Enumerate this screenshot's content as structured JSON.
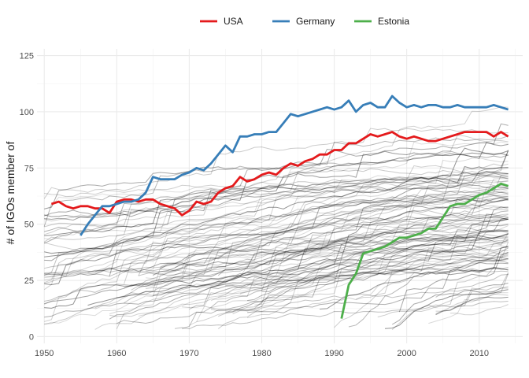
{
  "chart_data": {
    "type": "line",
    "title": "",
    "xlabel": "",
    "ylabel": "# of IGOs member of",
    "xlim": [
      1949,
      2016
    ],
    "ylim": [
      -3,
      128
    ],
    "x_ticks": [
      1950,
      1960,
      1970,
      1980,
      1990,
      2000,
      2010
    ],
    "x_tick_labels": [
      "1950",
      "1960",
      "1970",
      "1980",
      "1990",
      "2000",
      "2010"
    ],
    "y_ticks": [
      0,
      25,
      50,
      75,
      100,
      125
    ],
    "y_tick_labels": [
      "0",
      "25",
      "50",
      "75",
      "100",
      "125"
    ],
    "grid": true,
    "legend_position": "top",
    "legend": [
      "USA",
      "Germany",
      "Estonia"
    ],
    "background_series_color": "#000000",
    "series": [
      {
        "name": "USA",
        "color": "#e41a1c",
        "x": [
          1951,
          1952,
          1953,
          1954,
          1955,
          1956,
          1957,
          1958,
          1959,
          1960,
          1961,
          1962,
          1963,
          1964,
          1965,
          1966,
          1967,
          1968,
          1969,
          1970,
          1971,
          1972,
          1973,
          1974,
          1975,
          1976,
          1977,
          1978,
          1979,
          1980,
          1981,
          1982,
          1983,
          1984,
          1985,
          1986,
          1987,
          1988,
          1989,
          1990,
          1991,
          1992,
          1993,
          1994,
          1995,
          1996,
          1997,
          1998,
          1999,
          2000,
          2001,
          2002,
          2003,
          2004,
          2005,
          2006,
          2007,
          2008,
          2009,
          2010,
          2011,
          2012,
          2013,
          2014
        ],
        "y": [
          59,
          60,
          58,
          57,
          58,
          58,
          57,
          57,
          55,
          60,
          61,
          61,
          60,
          61,
          61,
          59,
          58,
          57,
          54,
          56,
          60,
          59,
          60,
          64,
          66,
          67,
          71,
          69,
          70,
          72,
          73,
          72,
          75,
          77,
          76,
          78,
          79,
          81,
          81,
          83,
          83,
          86,
          86,
          88,
          90,
          89,
          90,
          91,
          89,
          88,
          89,
          88,
          87,
          87,
          88,
          89,
          90,
          91,
          91,
          91,
          91,
          89,
          91,
          89
        ]
      },
      {
        "name": "Germany",
        "color": "#377eb8",
        "x": [
          1955,
          1956,
          1957,
          1958,
          1959,
          1960,
          1961,
          1962,
          1963,
          1964,
          1965,
          1966,
          1967,
          1968,
          1969,
          1970,
          1971,
          1972,
          1973,
          1974,
          1975,
          1976,
          1977,
          1978,
          1979,
          1980,
          1981,
          1982,
          1983,
          1984,
          1985,
          1986,
          1987,
          1988,
          1989,
          1990,
          1991,
          1992,
          1993,
          1994,
          1995,
          1996,
          1997,
          1998,
          1999,
          2000,
          2001,
          2002,
          2003,
          2004,
          2005,
          2006,
          2007,
          2008,
          2009,
          2010,
          2011,
          2012,
          2013,
          2014
        ],
        "y": [
          45,
          50,
          54,
          58,
          58,
          59,
          60,
          60,
          61,
          64,
          71,
          70,
          70,
          70,
          72,
          73,
          75,
          74,
          77,
          81,
          85,
          82,
          89,
          89,
          90,
          90,
          91,
          91,
          95,
          99,
          98,
          99,
          100,
          101,
          102,
          101,
          102,
          105,
          100,
          103,
          104,
          102,
          102,
          107,
          104,
          102,
          103,
          102,
          103,
          103,
          102,
          102,
          103,
          102,
          102,
          102,
          102,
          103,
          102,
          101
        ]
      },
      {
        "name": "Estonia",
        "color": "#4daf4a",
        "x": [
          1991,
          1992,
          1993,
          1994,
          1995,
          1996,
          1997,
          1998,
          1999,
          2000,
          2001,
          2002,
          2003,
          2004,
          2005,
          2006,
          2007,
          2008,
          2009,
          2010,
          2011,
          2012,
          2013,
          2014
        ],
        "y": [
          8,
          23,
          28,
          37,
          38,
          39,
          40,
          42,
          44,
          44,
          45,
          46,
          48,
          48,
          53,
          58,
          59,
          59,
          61,
          63,
          64,
          66,
          68,
          67
        ]
      }
    ]
  }
}
